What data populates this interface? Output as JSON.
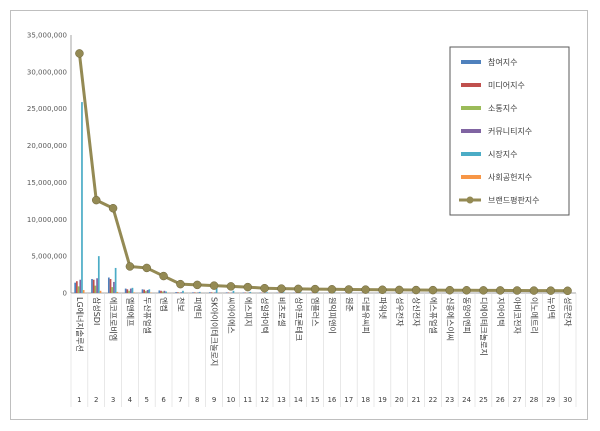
{
  "chart_data": {
    "type": "bar",
    "title": "",
    "xlabel": "",
    "ylabel": "",
    "ylim": [
      0,
      35000000
    ],
    "yticks": [
      "0",
      "5,000,000",
      "10,000,000",
      "15,000,000",
      "20,000,000",
      "25,000,000",
      "30,000,000",
      "35,000,000"
    ],
    "grid": false,
    "legend_position": "top-right",
    "categories": [
      "LG에너지솔루션",
      "삼성SDI",
      "에코프로비엠",
      "엘앤에프",
      "두산퓨얼셀",
      "엔켐",
      "천보",
      "피엔티",
      "SK아이이테크놀로지",
      "씨아이에스",
      "에스피지",
      "성일하이텍",
      "비츠로셀",
      "상아프론테크",
      "엠플러스",
      "원익피앤이",
      "원준",
      "더블유씨피",
      "파워넷",
      "성우전자",
      "상신전자",
      "에스퓨얼셀",
      "신흥에스이씨",
      "동양이엔피",
      "디에이테크놀로지",
      "지아이텍",
      "아비코전자",
      "이노메트리",
      "뉴인텍",
      "성문전자"
    ],
    "indices": [
      "1",
      "2",
      "3",
      "4",
      "5",
      "6",
      "7",
      "8",
      "9",
      "10",
      "11",
      "12",
      "13",
      "14",
      "15",
      "16",
      "17",
      "18",
      "19",
      "20",
      "21",
      "22",
      "23",
      "24",
      "25",
      "26",
      "27",
      "28",
      "29",
      "30"
    ],
    "series": [
      {
        "name": "참여지수",
        "color": "#4f81bd",
        "values": [
          1400000,
          1900000,
          2100000,
          600000,
          500000,
          350000,
          120000,
          90000,
          100000,
          80000,
          70000,
          60000,
          50000,
          50000,
          45000,
          40000,
          40000,
          35000,
          35000,
          30000,
          30000,
          30000,
          25000,
          25000,
          25000,
          20000,
          20000,
          20000,
          15000,
          15000
        ]
      },
      {
        "name": "미디어지수",
        "color": "#c0504d",
        "values": [
          1600000,
          1800000,
          1900000,
          500000,
          450000,
          300000,
          100000,
          80000,
          90000,
          70000,
          60000,
          50000,
          45000,
          40000,
          40000,
          35000,
          35000,
          30000,
          30000,
          25000,
          25000,
          25000,
          20000,
          20000,
          20000,
          15000,
          15000,
          15000,
          12000,
          12000
        ]
      },
      {
        "name": "소통지수",
        "color": "#9bbb59",
        "values": [
          900000,
          1000000,
          800000,
          300000,
          250000,
          200000,
          60000,
          50000,
          50000,
          40000,
          35000,
          30000,
          25000,
          25000,
          20000,
          20000,
          20000,
          18000,
          18000,
          15000,
          15000,
          15000,
          12000,
          12000,
          12000,
          10000,
          10000,
          10000,
          8000,
          8000
        ]
      },
      {
        "name": "커뮤니티지수",
        "color": "#8064a2",
        "values": [
          1800000,
          2000000,
          1500000,
          600000,
          400000,
          300000,
          100000,
          80000,
          80000,
          60000,
          50000,
          45000,
          40000,
          35000,
          35000,
          30000,
          30000,
          25000,
          25000,
          20000,
          20000,
          20000,
          18000,
          18000,
          18000,
          15000,
          15000,
          15000,
          12000,
          12000
        ]
      },
      {
        "name": "시장지수",
        "color": "#4bacc6",
        "values": [
          25900000,
          5000000,
          3400000,
          700000,
          500000,
          200000,
          300000,
          150000,
          900000,
          300000,
          150000,
          100000,
          80000,
          70000,
          60000,
          60000,
          50000,
          50000,
          45000,
          40000,
          40000,
          35000,
          35000,
          30000,
          30000,
          25000,
          25000,
          20000,
          20000,
          20000
        ]
      },
      {
        "name": "사회공헌지수",
        "color": "#f79646",
        "values": [
          400000,
          300000,
          150000,
          80000,
          60000,
          40000,
          20000,
          15000,
          15000,
          12000,
          10000,
          10000,
          8000,
          8000,
          8000,
          6000,
          6000,
          6000,
          5000,
          5000,
          5000,
          5000,
          4000,
          4000,
          4000,
          3000,
          3000,
          3000,
          3000,
          3000
        ]
      },
      {
        "name": "브랜드평판지수",
        "color": "#948a54",
        "type": "line",
        "values": [
          32500000,
          12600000,
          11500000,
          3600000,
          3400000,
          2300000,
          1200000,
          1100000,
          1000000,
          900000,
          800000,
          650000,
          600000,
          560000,
          530000,
          500000,
          480000,
          460000,
          440000,
          420000,
          400000,
          390000,
          380000,
          370000,
          360000,
          350000,
          340000,
          330000,
          320000,
          300000
        ]
      }
    ]
  }
}
